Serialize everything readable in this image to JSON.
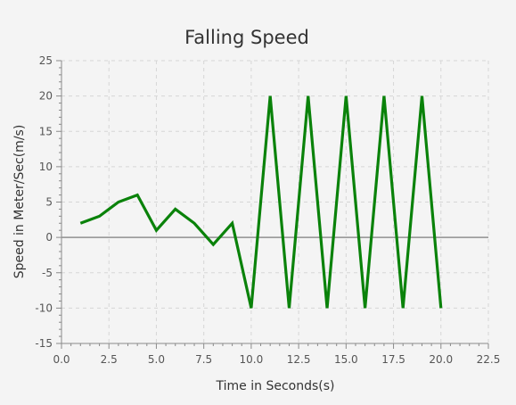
{
  "chart_data": {
    "type": "line",
    "title": "Falling Speed",
    "xlabel": "Time in Seconds(s)",
    "ylabel": "Speed in Meter/Sec(m/s)",
    "xlim": [
      0,
      22.5
    ],
    "ylim": [
      -15,
      25
    ],
    "x_ticks": [
      0,
      2.5,
      5,
      7.5,
      10,
      12.5,
      15,
      17.5,
      20,
      22.5
    ],
    "x_tick_labels": [
      "0.0",
      "2.5",
      "5.0",
      "7.5",
      "10.0",
      "12.5",
      "15.0",
      "17.5",
      "20.0",
      "22.5"
    ],
    "y_ticks": [
      -15,
      -10,
      -5,
      0,
      5,
      10,
      15,
      20,
      25
    ],
    "y_tick_labels": [
      "-15",
      "-10",
      "-5",
      "0",
      "5",
      "10",
      "15",
      "20",
      "25"
    ],
    "grid": true,
    "legend": "none",
    "series": [
      {
        "color": "#0a820a",
        "x": [
          1,
          2,
          3,
          4,
          5,
          6,
          7,
          8,
          9,
          10,
          11,
          12,
          13,
          14,
          15,
          16,
          17,
          18,
          19,
          20
        ],
        "values": [
          2,
          3,
          5,
          6,
          1,
          4,
          2,
          -1,
          2,
          -10,
          20,
          -10,
          20,
          -10,
          20,
          -10,
          20,
          -10,
          20,
          -10
        ]
      }
    ]
  }
}
